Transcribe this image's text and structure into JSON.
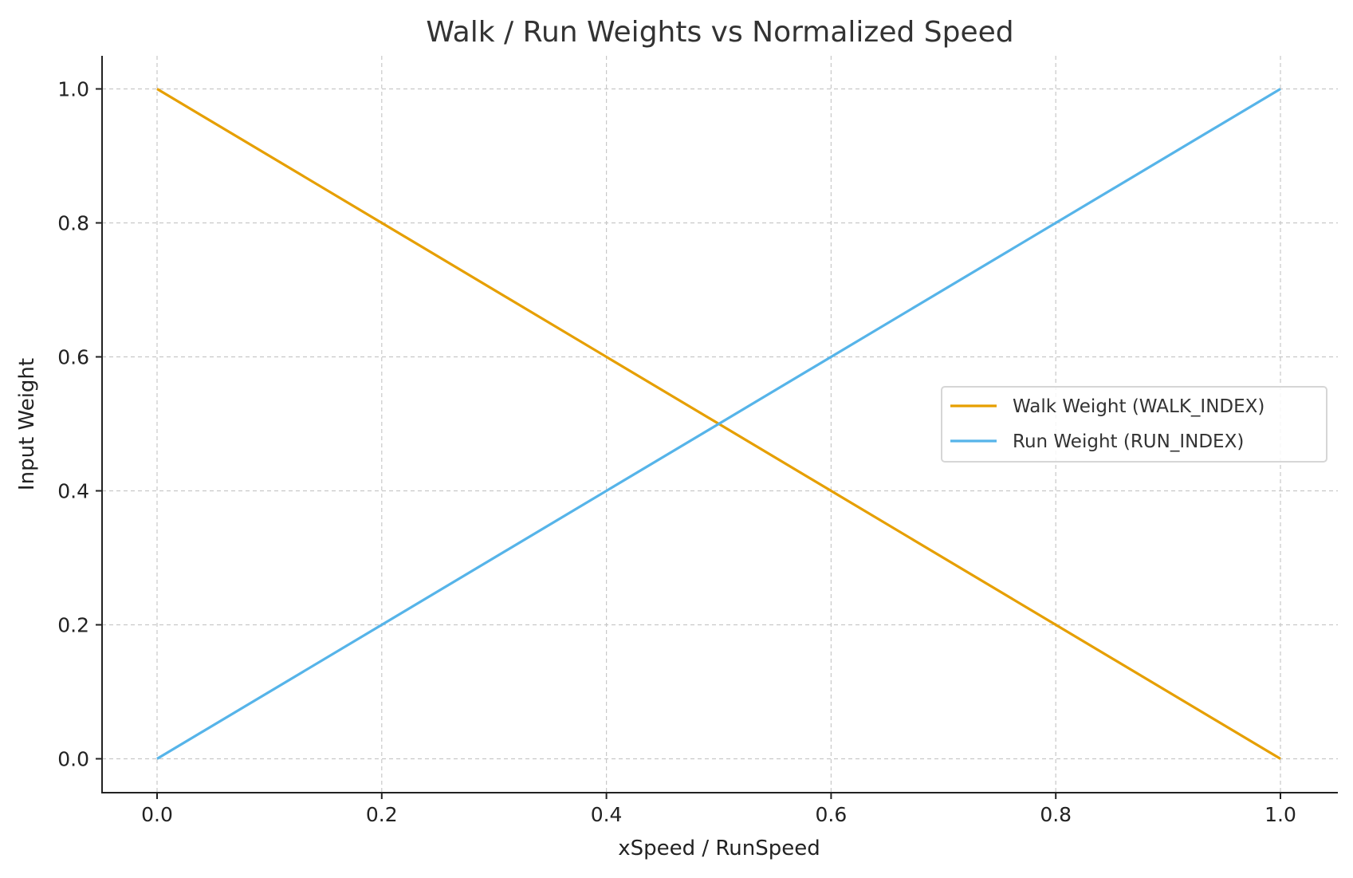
{
  "chart_data": {
    "type": "line",
    "title": "Walk / Run Weights vs Normalized Speed",
    "xlabel": "xSpeed / RunSpeed",
    "ylabel": "Input Weight",
    "xlim": [
      -0.05,
      1.05
    ],
    "ylim": [
      -0.05,
      1.05
    ],
    "xticks": [
      0.0,
      0.2,
      0.4,
      0.6,
      0.8,
      1.0
    ],
    "yticks": [
      0.0,
      0.2,
      0.4,
      0.6,
      0.8,
      1.0
    ],
    "xtick_labels": [
      "0.0",
      "0.2",
      "0.4",
      "0.6",
      "0.8",
      "1.0"
    ],
    "ytick_labels": [
      "0.0",
      "0.2",
      "0.4",
      "0.6",
      "0.8",
      "1.0"
    ],
    "grid": true,
    "legend_position": "center-right",
    "series": [
      {
        "name": "Walk Weight (WALK_INDEX)",
        "color": "#E69F00",
        "x": [
          0.0,
          1.0
        ],
        "y": [
          1.0,
          0.0
        ]
      },
      {
        "name": "Run Weight (RUN_INDEX)",
        "color": "#56B4E9",
        "x": [
          0.0,
          1.0
        ],
        "y": [
          0.0,
          1.0
        ]
      }
    ]
  }
}
